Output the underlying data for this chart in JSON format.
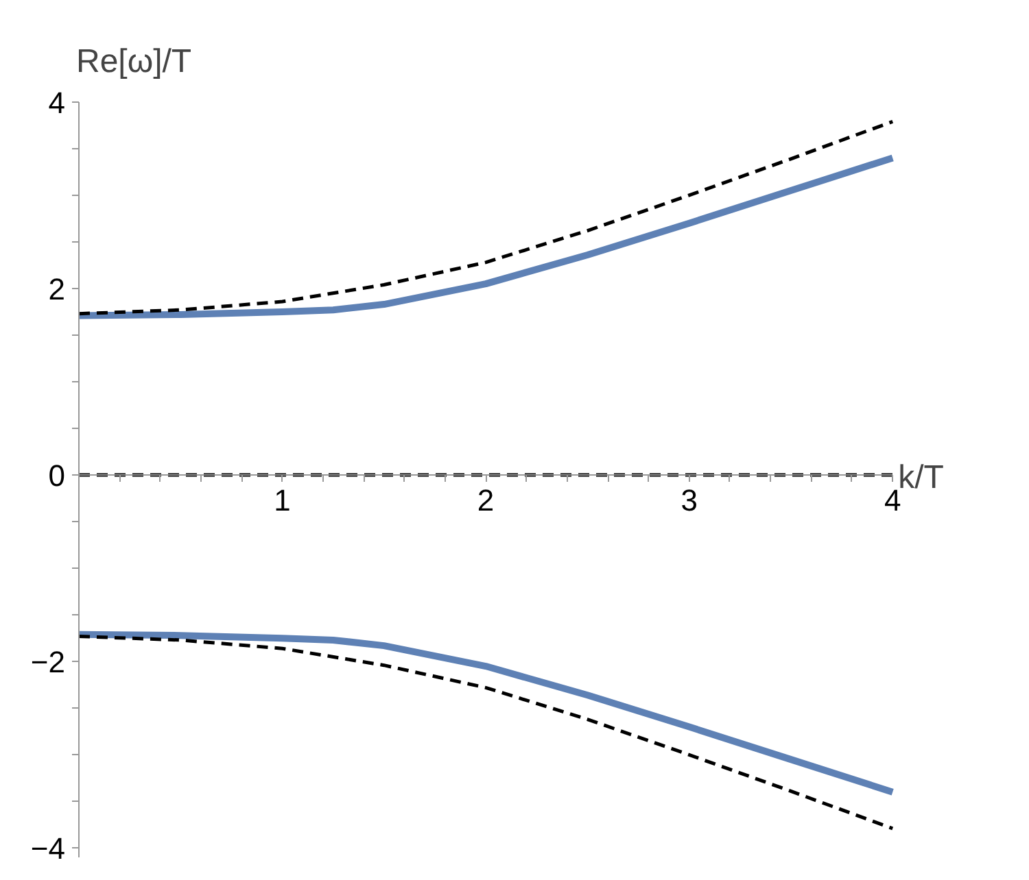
{
  "chart_data": {
    "type": "line",
    "xlabel": "k/T",
    "ylabel": "Re[ω]/T",
    "xlim": [
      0,
      4
    ],
    "ylim": [
      -4.1,
      4
    ],
    "xticks": [
      {
        "value": 0.2,
        "label": null
      },
      {
        "value": 0.4,
        "label": null
      },
      {
        "value": 0.6,
        "label": null
      },
      {
        "value": 0.8,
        "label": null
      },
      1,
      {
        "value": 1.2,
        "label": null
      },
      {
        "value": 1.4,
        "label": null
      },
      {
        "value": 1.6,
        "label": null
      },
      {
        "value": 1.8,
        "label": null
      },
      2,
      {
        "value": 2.2,
        "label": null
      },
      {
        "value": 2.4,
        "label": null
      },
      {
        "value": 2.6,
        "label": null
      },
      {
        "value": 2.8,
        "label": null
      },
      3,
      {
        "value": 3.2,
        "label": null
      },
      {
        "value": 3.4,
        "label": null
      },
      {
        "value": 3.6,
        "label": null
      },
      {
        "value": 3.8,
        "label": null
      },
      4
    ],
    "yticks": [
      {
        "value": -4,
        "label": "−4"
      },
      {
        "value": -3.5,
        "label": null
      },
      {
        "value": -3,
        "label": null
      },
      {
        "value": -2.5,
        "label": null
      },
      {
        "value": -2,
        "label": "−2"
      },
      {
        "value": -1.5,
        "label": null
      },
      {
        "value": -1,
        "label": null
      },
      {
        "value": -0.5,
        "label": null
      },
      0,
      {
        "value": 0.5,
        "label": null
      },
      {
        "value": 1,
        "label": null
      },
      {
        "value": 1.5,
        "label": null
      },
      2,
      {
        "value": 2.5,
        "label": null
      },
      {
        "value": 3,
        "label": null
      },
      {
        "value": 3.5,
        "label": null
      },
      4
    ],
    "grid": false,
    "series": [
      {
        "color": "#5e81b5",
        "line_style": "solid",
        "x": [
          0,
          0.5,
          1,
          1.25,
          1.5,
          2,
          2.5,
          3,
          3.5,
          4
        ],
        "values": [
          1.71,
          1.72,
          1.75,
          1.77,
          1.83,
          2.05,
          2.36,
          2.7,
          3.05,
          3.4
        ]
      },
      {
        "color": "#5e81b5",
        "line_style": "solid",
        "x": [
          0,
          0.5,
          1,
          1.25,
          1.5,
          2,
          2.5,
          3,
          3.5,
          4
        ],
        "values": [
          -1.71,
          -1.72,
          -1.75,
          -1.77,
          -1.83,
          -2.05,
          -2.36,
          -2.7,
          -3.05,
          -3.4
        ]
      },
      {
        "color": "#000000",
        "line_style": "dashed",
        "x": [
          0,
          0.5,
          1,
          1.5,
          2,
          2.5,
          3,
          3.5,
          4
        ],
        "values": [
          1.73,
          1.77,
          1.86,
          2.04,
          2.28,
          2.62,
          3.0,
          3.39,
          3.79
        ]
      },
      {
        "color": "#000000",
        "line_style": "dashed",
        "x": [
          0,
          0.5,
          1,
          1.5,
          2,
          2.5,
          3,
          3.5,
          4
        ],
        "values": [
          -1.73,
          -1.77,
          -1.86,
          -2.04,
          -2.28,
          -2.62,
          -3.0,
          -3.39,
          -3.79
        ]
      },
      {
        "color": "#000000",
        "line_style": "dashed",
        "x": [
          0,
          4
        ],
        "values": [
          0,
          0
        ]
      }
    ]
  }
}
